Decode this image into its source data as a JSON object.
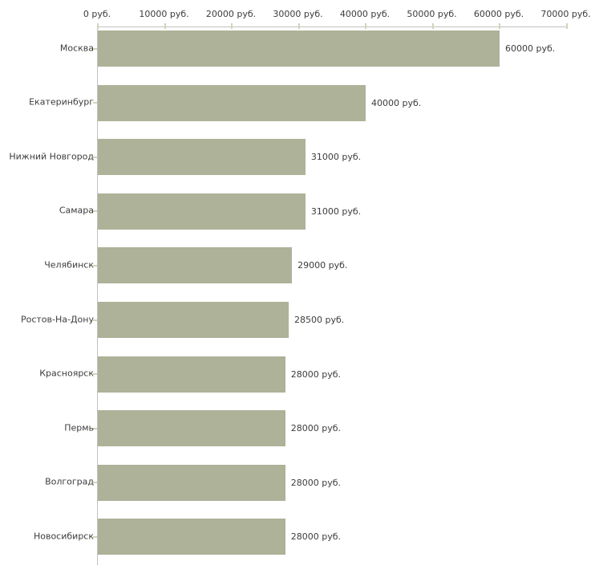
{
  "chart_data": {
    "type": "bar",
    "orientation": "horizontal",
    "title": "",
    "xlabel": "",
    "ylabel": "",
    "categories": [
      "Москва",
      "Екатеринбург",
      "Нижний Новгород",
      "Самара",
      "Челябинск",
      "Ростов-На-Дону",
      "Красноярск",
      "Пермь",
      "Волгоград",
      "Новосибирск"
    ],
    "values": [
      60000,
      40000,
      31000,
      31000,
      29000,
      28500,
      28000,
      28000,
      28000,
      28000
    ],
    "value_labels": [
      "60000 руб.",
      "40000 руб.",
      "31000 руб.",
      "31000 руб.",
      "29000 руб.",
      "28500 руб.",
      "28000 руб.",
      "28000 руб.",
      "28000 руб.",
      "28000 руб."
    ],
    "x_ticks": [
      0,
      10000,
      20000,
      30000,
      40000,
      50000,
      60000,
      70000
    ],
    "x_tick_labels": [
      "0 руб.",
      "10000 руб.",
      "20000 руб.",
      "30000 руб.",
      "40000 руб.",
      "50000 руб.",
      "60000 руб.",
      "70000 руб."
    ],
    "xlim": [
      0,
      70000
    ],
    "grid": false,
    "legend": false,
    "bar_color": "#adb298",
    "axis_color": "#c0c0c0",
    "tick_color": "#d2d4b8",
    "text_color": "#3c3c3c"
  }
}
